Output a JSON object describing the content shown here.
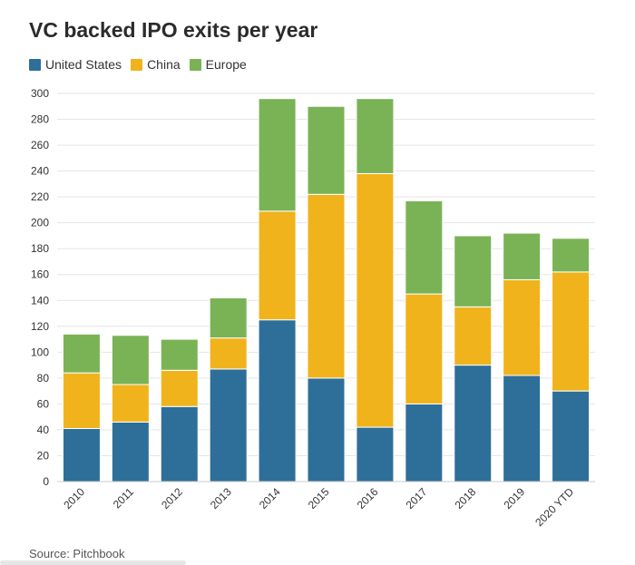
{
  "chart_data": {
    "type": "bar",
    "stacked": true,
    "title": "VC backed IPO exits per year",
    "xlabel": "",
    "ylabel": "",
    "ylim": [
      0,
      300
    ],
    "yticks": [
      0,
      20,
      40,
      60,
      80,
      100,
      120,
      140,
      160,
      180,
      200,
      220,
      240,
      260,
      280,
      300
    ],
    "grid": true,
    "legend_position": "top-left",
    "categories": [
      "2010",
      "2011",
      "2012",
      "2013",
      "2014",
      "2015",
      "2016",
      "2017",
      "2018",
      "2019",
      "2020 YTD"
    ],
    "series": [
      {
        "name": "United States",
        "color": "#2e6f99",
        "values": [
          41,
          46,
          58,
          87,
          125,
          80,
          42,
          60,
          90,
          82,
          70
        ]
      },
      {
        "name": "China",
        "color": "#f0b31c",
        "values": [
          43,
          29,
          28,
          24,
          84,
          142,
          196,
          85,
          45,
          74,
          92
        ]
      },
      {
        "name": "Europe",
        "color": "#7ab356",
        "values": [
          30,
          38,
          24,
          31,
          87,
          68,
          58,
          72,
          55,
          36,
          26
        ]
      }
    ]
  },
  "source": "Source: Pitchbook"
}
